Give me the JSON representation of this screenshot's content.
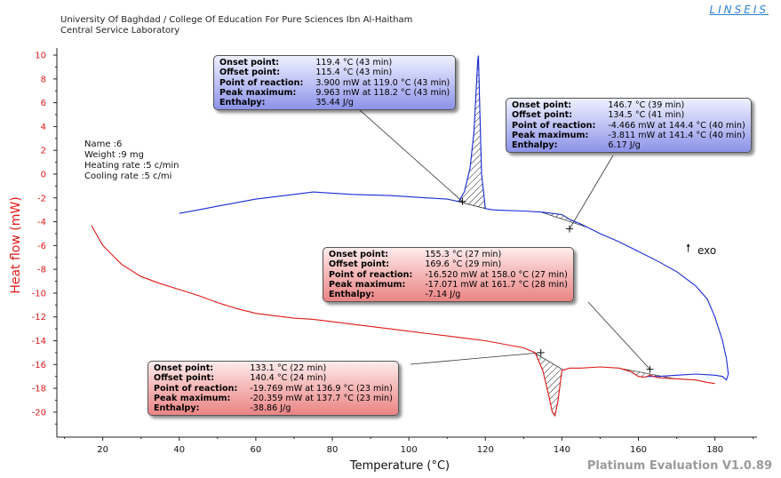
{
  "header": {
    "line1": "University Of Baghdad / College Of Education For Pure Sciences Ibn Al-Haitham",
    "line2": "Central Service Laboratory",
    "logo": "LINSEIS"
  },
  "footer": "Platinum Evaluation V1.0.89",
  "sample_info": [
    "Name :6",
    "Weight :9  mg",
    "Heating rate :5 c/min",
    "Cooling rate :5 c/mi"
  ],
  "exo_label": "exo",
  "colors": {
    "heating": "#1a2bd6",
    "cooling": "#e01818",
    "ylabel": "#e01818"
  },
  "chart_data": {
    "type": "line",
    "xlabel": "Temperature (°C)",
    "ylabel": "Heat flow (mW)",
    "xlim": [
      8,
      191
    ],
    "ylim": [
      -22.1,
      10.6
    ],
    "x_ticks": [
      20,
      40,
      60,
      80,
      100,
      120,
      140,
      160,
      180
    ],
    "y_ticks": [
      10,
      8,
      6,
      4,
      2,
      0,
      -2,
      -4,
      -6,
      -8,
      -10,
      -12,
      -14,
      -16,
      -18,
      -20
    ],
    "grid": false,
    "series": [
      {
        "color": "#1a2bd6",
        "x": [
          40,
          45,
          50,
          55,
          60,
          65,
          70,
          75,
          80,
          85,
          90,
          95,
          100,
          105,
          110,
          113,
          114.5,
          116,
          117,
          117.6,
          118,
          118.2,
          118.5,
          119,
          120,
          122,
          125,
          130,
          135,
          140,
          142,
          145,
          150,
          155,
          160,
          165,
          170,
          175,
          178,
          180,
          182,
          183,
          183.5,
          183,
          182,
          180,
          175,
          170,
          165,
          162
        ],
        "y": [
          -3.3,
          -3.0,
          -2.7,
          -2.4,
          -2.1,
          -1.9,
          -1.7,
          -1.5,
          -1.6,
          -1.7,
          -1.75,
          -1.8,
          -1.9,
          -2.0,
          -2.1,
          -2.3,
          -1.5,
          0.5,
          3.5,
          7.0,
          9.6,
          9.963,
          6.0,
          0.0,
          -2.9,
          -3.0,
          -3.05,
          -3.1,
          -3.2,
          -3.4,
          -3.8,
          -4.2,
          -5.0,
          -5.7,
          -6.5,
          -7.3,
          -8.2,
          -9.4,
          -10.5,
          -12.0,
          -14.0,
          -15.5,
          -16.8,
          -17.3,
          -17.0,
          -16.9,
          -16.8,
          -16.9,
          -17.0,
          -17.0
        ]
      },
      {
        "color": "#e01818",
        "x": [
          17,
          20,
          25,
          30,
          35,
          40,
          45,
          50,
          55,
          60,
          65,
          70,
          75,
          80,
          85,
          90,
          95,
          100,
          105,
          110,
          115,
          120,
          125,
          130,
          133,
          135,
          136.5,
          137.5,
          138.2,
          139,
          140,
          142,
          145,
          150,
          155,
          158,
          160,
          161.7,
          163,
          165,
          170,
          175,
          178,
          180
        ],
        "y": [
          -4.3,
          -6.0,
          -7.6,
          -8.6,
          -9.2,
          -9.7,
          -10.2,
          -10.8,
          -11.3,
          -11.7,
          -11.9,
          -12.1,
          -12.2,
          -12.4,
          -12.6,
          -12.8,
          -13.0,
          -13.2,
          -13.4,
          -13.6,
          -13.8,
          -14.0,
          -14.3,
          -14.6,
          -15.0,
          -16.5,
          -18.5,
          -20.0,
          -20.3,
          -19.0,
          -16.5,
          -16.3,
          -16.3,
          -16.2,
          -16.3,
          -16.6,
          -17.0,
          -17.07,
          -16.9,
          -17.1,
          -17.2,
          -17.3,
          -17.5,
          -17.6
        ]
      }
    ],
    "annotations": [
      {
        "color": "blue",
        "mark_x": 114,
        "mark_y": -2.3,
        "rows": [
          [
            "Onset point:",
            "119.4 °C (43 min)"
          ],
          [
            "Offset point:",
            "115.4 °C (43 min)"
          ],
          [
            "Point of reaction:",
            "3.900 mW at 119.0 °C (43 min)"
          ],
          [
            "Peak maximum:",
            "9.963 mW at 118.2 °C (43 min)"
          ],
          [
            "Enthalpy:",
            "35.44 J/g"
          ]
        ]
      },
      {
        "color": "blue",
        "mark_x": 142,
        "mark_y": -4.6,
        "rows": [
          [
            "Onset point:",
            "146.7 °C (39 min)"
          ],
          [
            "Offset point:",
            "134.5 °C (41 min)"
          ],
          [
            "Point of reaction:",
            "-4.466 mW at 144.4 °C (40 min)"
          ],
          [
            "Peak maximum:",
            "-3.811 mW at 141.4 °C (40 min)"
          ],
          [
            "Enthalpy:",
            "6.17 J/g"
          ]
        ]
      },
      {
        "color": "red",
        "mark_x": 163,
        "mark_y": -16.4,
        "rows": [
          [
            "Onset point:",
            "155.3 °C (27 min)"
          ],
          [
            "Offset point:",
            "169.6 °C (29 min)"
          ],
          [
            "Point of reaction:",
            "-16.520 mW at 158.0 °C (27 min)"
          ],
          [
            "Peak maximum:",
            "-17.071 mW at 161.7 °C (28 min)"
          ],
          [
            "Enthalpy:",
            "-7.14 J/g"
          ]
        ]
      },
      {
        "color": "red",
        "mark_x": 134.5,
        "mark_y": -15.0,
        "rows": [
          [
            "Onset point:",
            "133.1 °C (22 min)"
          ],
          [
            "Offset point:",
            "140.4 °C (24 min)"
          ],
          [
            "Point of reaction:",
            "-19.769 mW at 136.9 °C (23 min)"
          ],
          [
            "Peak maximum:",
            "-20.359 mW at 137.7 °C (23 min)"
          ],
          [
            "Enthalpy:",
            "-38.86 J/g"
          ]
        ]
      }
    ]
  }
}
